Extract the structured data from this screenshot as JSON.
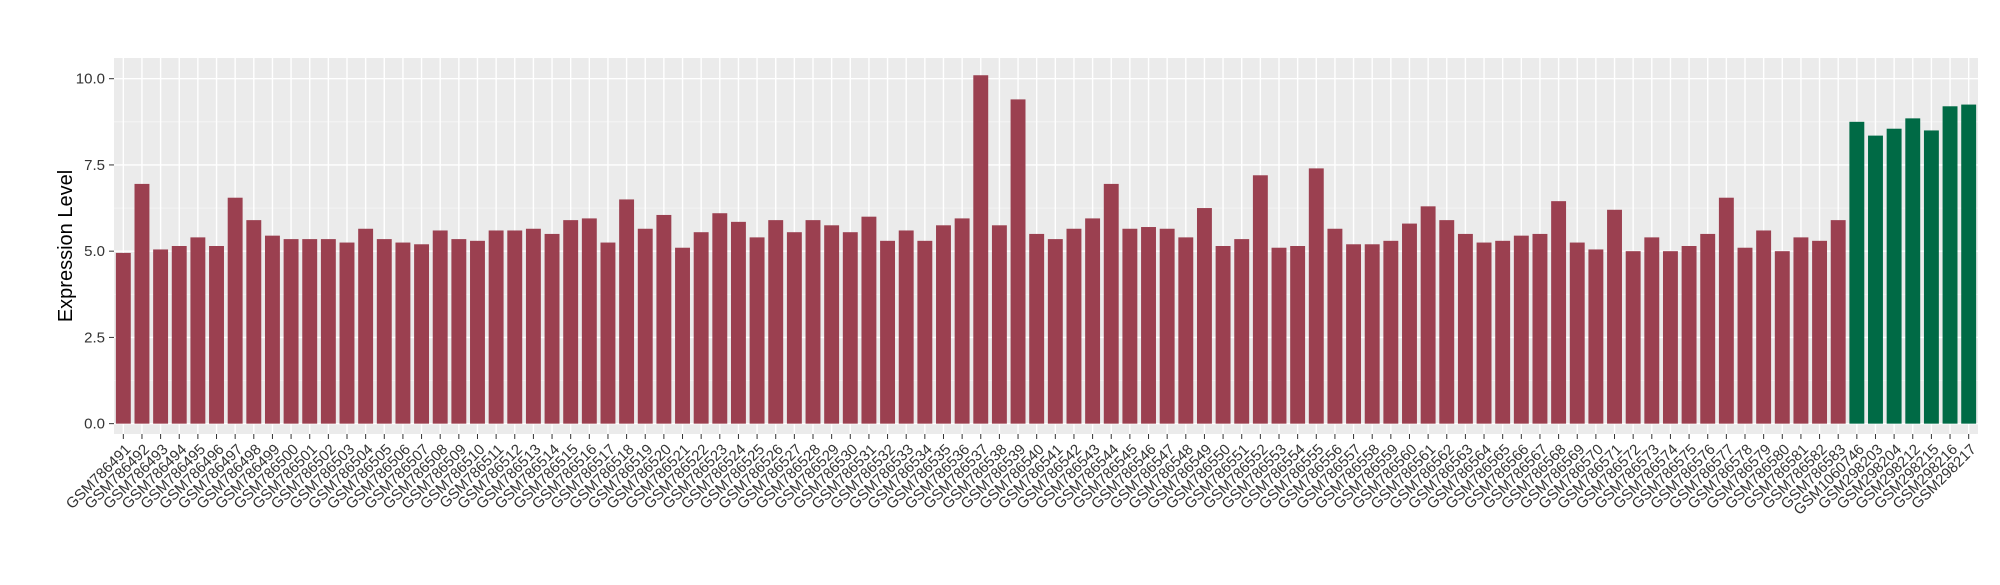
{
  "chart_data": {
    "type": "bar",
    "y_label": "Expression Level",
    "categories": [
      "GSM786491",
      "GSM786492",
      "GSM786493",
      "GSM786494",
      "GSM786495",
      "GSM786496",
      "GSM786497",
      "GSM786498",
      "GSM786499",
      "GSM786500",
      "GSM786501",
      "GSM786502",
      "GSM786503",
      "GSM786504",
      "GSM786505",
      "GSM786506",
      "GSM786507",
      "GSM786508",
      "GSM786509",
      "GSM786510",
      "GSM786511",
      "GSM786512",
      "GSM786513",
      "GSM786514",
      "GSM786515",
      "GSM786516",
      "GSM786517",
      "GSM786518",
      "GSM786519",
      "GSM786520",
      "GSM786521",
      "GSM786522",
      "GSM786523",
      "GSM786524",
      "GSM786525",
      "GSM786526",
      "GSM786527",
      "GSM786528",
      "GSM786529",
      "GSM786530",
      "GSM786531",
      "GSM786532",
      "GSM786533",
      "GSM786534",
      "GSM786535",
      "GSM786536",
      "GSM786537",
      "GSM786538",
      "GSM786539",
      "GSM786540",
      "GSM786541",
      "GSM786542",
      "GSM786543",
      "GSM786544",
      "GSM786545",
      "GSM786546",
      "GSM786547",
      "GSM786548",
      "GSM786549",
      "GSM786550",
      "GSM786551",
      "GSM786552",
      "GSM786553",
      "GSM786554",
      "GSM786555",
      "GSM786556",
      "GSM786557",
      "GSM786558",
      "GSM786559",
      "GSM786560",
      "GSM786561",
      "GSM786562",
      "GSM786563",
      "GSM786564",
      "GSM786565",
      "GSM786566",
      "GSM786567",
      "GSM786568",
      "GSM786569",
      "GSM786570",
      "GSM786571",
      "GSM786572",
      "GSM786573",
      "GSM786574",
      "GSM786575",
      "GSM786576",
      "GSM786577",
      "GSM786578",
      "GSM786579",
      "GSM786580",
      "GSM786581",
      "GSM786582",
      "GSM786583",
      "GSM1060746",
      "GSM298203",
      "GSM298204",
      "GSM298212",
      "GSM298215",
      "GSM298216",
      "GSM298217"
    ],
    "values": [
      4.95,
      6.95,
      5.05,
      5.15,
      5.4,
      5.15,
      6.55,
      5.9,
      5.45,
      5.35,
      5.35,
      5.35,
      5.25,
      5.65,
      5.35,
      5.25,
      5.2,
      5.6,
      5.35,
      5.3,
      5.6,
      5.6,
      5.65,
      5.5,
      5.9,
      5.95,
      5.25,
      6.5,
      5.65,
      6.05,
      5.1,
      5.55,
      6.1,
      5.85,
      5.4,
      5.9,
      5.55,
      5.9,
      5.75,
      5.55,
      6.0,
      5.3,
      5.6,
      5.3,
      5.75,
      5.95,
      10.1,
      5.75,
      9.4,
      5.5,
      5.35,
      5.65,
      5.95,
      6.95,
      5.65,
      5.7,
      5.65,
      5.4,
      6.25,
      5.15,
      5.35,
      7.2,
      5.1,
      5.15,
      7.4,
      5.65,
      5.2,
      5.2,
      5.3,
      5.8,
      6.3,
      5.9,
      5.5,
      5.25,
      5.3,
      5.45,
      5.5,
      6.45,
      5.25,
      5.05,
      6.2,
      5.0,
      5.4,
      5.0,
      5.15,
      5.5,
      6.55,
      5.1,
      5.6,
      5.0,
      5.4,
      5.3,
      5.9,
      8.75,
      8.35,
      8.55,
      8.85,
      8.5,
      9.2,
      9.25
    ],
    "colors": [
      "#9b4050",
      "#9b4050",
      "#9b4050",
      "#9b4050",
      "#9b4050",
      "#9b4050",
      "#9b4050",
      "#9b4050",
      "#9b4050",
      "#9b4050",
      "#9b4050",
      "#9b4050",
      "#9b4050",
      "#9b4050",
      "#9b4050",
      "#9b4050",
      "#9b4050",
      "#9b4050",
      "#9b4050",
      "#9b4050",
      "#9b4050",
      "#9b4050",
      "#9b4050",
      "#9b4050",
      "#9b4050",
      "#9b4050",
      "#9b4050",
      "#9b4050",
      "#9b4050",
      "#9b4050",
      "#9b4050",
      "#9b4050",
      "#9b4050",
      "#9b4050",
      "#9b4050",
      "#9b4050",
      "#9b4050",
      "#9b4050",
      "#9b4050",
      "#9b4050",
      "#9b4050",
      "#9b4050",
      "#9b4050",
      "#9b4050",
      "#9b4050",
      "#9b4050",
      "#9b4050",
      "#9b4050",
      "#9b4050",
      "#9b4050",
      "#9b4050",
      "#9b4050",
      "#9b4050",
      "#9b4050",
      "#9b4050",
      "#9b4050",
      "#9b4050",
      "#9b4050",
      "#9b4050",
      "#9b4050",
      "#9b4050",
      "#9b4050",
      "#9b4050",
      "#9b4050",
      "#9b4050",
      "#9b4050",
      "#9b4050",
      "#9b4050",
      "#9b4050",
      "#9b4050",
      "#9b4050",
      "#9b4050",
      "#9b4050",
      "#9b4050",
      "#9b4050",
      "#9b4050",
      "#9b4050",
      "#9b4050",
      "#9b4050",
      "#9b4050",
      "#9b4050",
      "#9b4050",
      "#9b4050",
      "#9b4050",
      "#9b4050",
      "#9b4050",
      "#9b4050",
      "#9b4050",
      "#9b4050",
      "#9b4050",
      "#9b4050",
      "#9b4050",
      "#9b4050",
      "#006a45",
      "#006a45",
      "#006a45",
      "#006a45",
      "#006a45",
      "#006a45",
      "#006a45"
    ],
    "ylim": [
      -0.3,
      10.6
    ],
    "yticks": [
      {
        "value": 0,
        "label": "0.0"
      },
      2.5,
      {
        "value": 5,
        "label": "5.0"
      },
      7.5,
      {
        "value": 10,
        "label": "10.0"
      }
    ],
    "grid": true
  }
}
